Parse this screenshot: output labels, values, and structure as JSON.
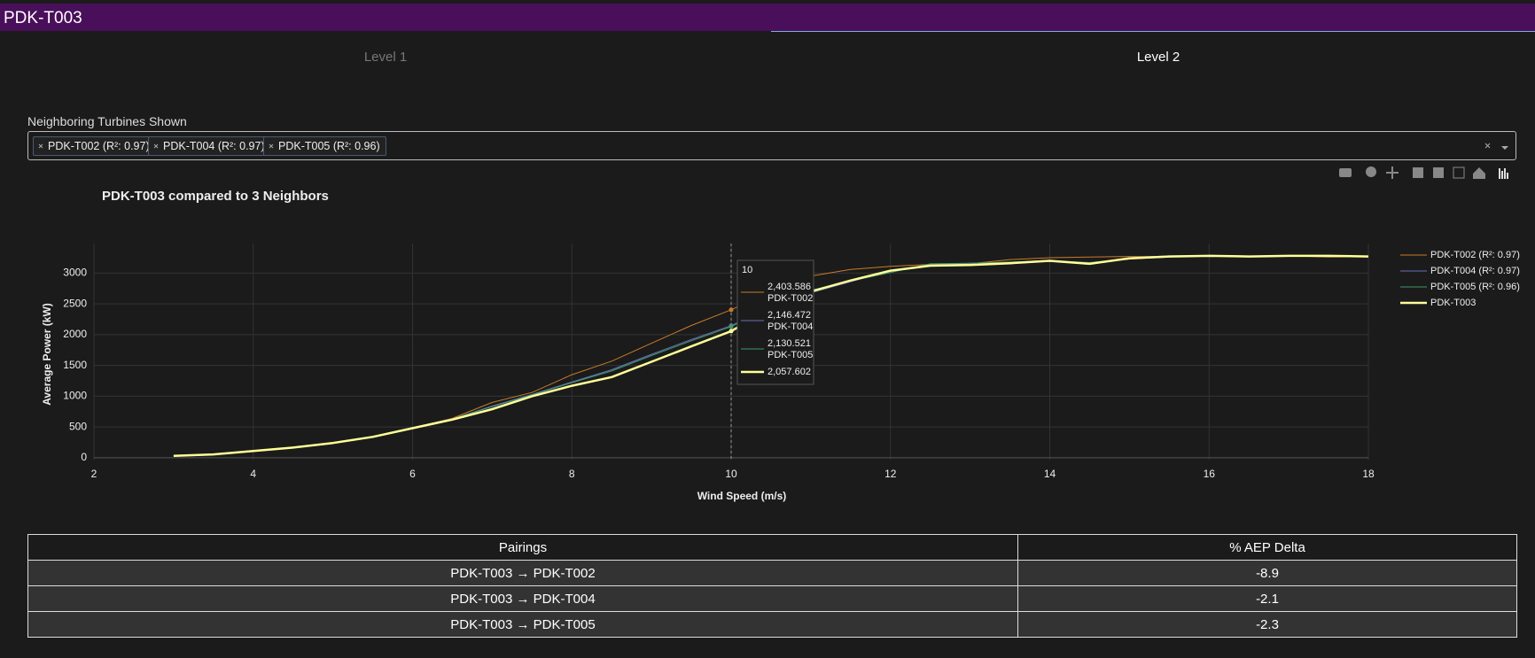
{
  "header": {
    "title": "PDK-T003"
  },
  "tabs": [
    "Level 1",
    "Level 2"
  ],
  "filter": {
    "label": "Neighboring Turbines Shown",
    "chips": [
      "PDK-T002 (R²: 0.97)",
      "PDK-T004 (R²: 0.97)",
      "PDK-T005 (R²: 0.96)"
    ]
  },
  "chart_data": {
    "type": "line",
    "title": "PDK-T003 compared to 3 Neighbors",
    "x_label": "Wind Speed (m/s)",
    "y_label": "Average Power (kW)",
    "x": [
      3,
      3.5,
      4,
      4.5,
      5,
      5.5,
      6,
      6.5,
      7,
      7.5,
      8,
      8.5,
      9,
      9.5,
      10,
      10.5,
      11,
      11.5,
      12,
      12.5,
      13,
      13.5,
      14,
      14.5,
      15,
      15.5,
      16,
      16.5,
      17,
      17.5,
      18
    ],
    "xlim": [
      2,
      18
    ],
    "xticks": [
      2,
      4,
      6,
      8,
      10,
      12,
      14,
      16,
      18
    ],
    "ylim": [
      -30,
      3480
    ],
    "yticks": [
      0,
      500,
      1000,
      1500,
      2000,
      2500,
      3000
    ],
    "grid": true,
    "legend": "right",
    "series": [
      {
        "name": "PDK-T002 (R²: 0.97)",
        "color": "#c97b2a",
        "width": 1,
        "values": [
          35,
          60,
          115,
          170,
          245,
          345,
          490,
          640,
          900,
          1060,
          1350,
          1570,
          1860,
          2150,
          2403.586,
          2700,
          2950,
          3060,
          3110,
          3140,
          3150,
          3220,
          3250,
          3260,
          3270,
          3270,
          3280,
          3270,
          3280,
          3260,
          3270
        ]
      },
      {
        "name": "PDK-T004 (R²: 0.97)",
        "color": "#6b6fb8",
        "width": 1,
        "values": [
          35,
          60,
          115,
          170,
          245,
          345,
          490,
          630,
          840,
          1030,
          1230,
          1430,
          1680,
          1920,
          2146.472,
          2440,
          2680,
          2860,
          3040,
          3130,
          3160,
          3170,
          3210,
          3140,
          3250,
          3280,
          3280,
          3270,
          3280,
          3280,
          3270
        ]
      },
      {
        "name": "PDK-T005 (R²: 0.96)",
        "color": "#3f9a6e",
        "width": 1,
        "values": [
          35,
          60,
          115,
          170,
          245,
          345,
          490,
          630,
          830,
          1020,
          1220,
          1410,
          1660,
          1900,
          2130.521,
          2460,
          2720,
          2870,
          3010,
          3150,
          3160,
          3180,
          3200,
          3170,
          3230,
          3260,
          3280,
          3270,
          3280,
          3270,
          3270
        ]
      },
      {
        "name": "PDK-T003",
        "color": "#ffff99",
        "width": 2.5,
        "values": [
          30,
          55,
          110,
          165,
          240,
          340,
          480,
          620,
          790,
          1000,
          1170,
          1310,
          1560,
          1810,
          2057.602,
          2420,
          2700,
          2880,
          3040,
          3120,
          3130,
          3160,
          3200,
          3150,
          3240,
          3270,
          3280,
          3270,
          3280,
          3280,
          3270
        ]
      }
    ],
    "tooltip": {
      "x": 10,
      "names": [
        "PDK-T002",
        "PDK-T004",
        "PDK-T005",
        null
      ],
      "values": [
        2403.586,
        2146.472,
        2130.521,
        2057.602
      ],
      "value_labels": [
        "2,403.586",
        "2,146.472",
        "2,130.521",
        "2,057.602"
      ]
    }
  },
  "table": {
    "columns": [
      "Pairings",
      "% AEP Delta"
    ],
    "rows": [
      [
        "PDK-T003 → PDK-T002",
        -8.9
      ],
      [
        "PDK-T003 → PDK-T004",
        -2.1
      ],
      [
        "PDK-T003 → PDK-T005",
        -2.3
      ]
    ]
  }
}
